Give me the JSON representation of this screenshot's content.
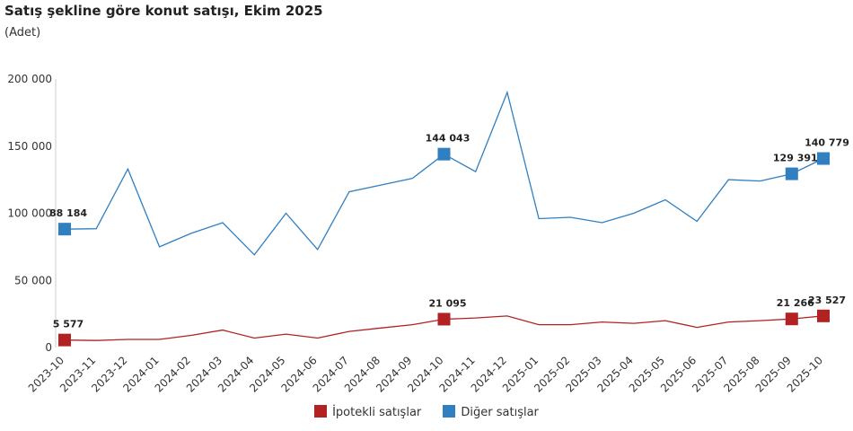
{
  "chart_data": {
    "type": "line",
    "title": "Satış şekline göre konut satışı, Ekim 2025",
    "subtitle": "(Adet)",
    "categories": [
      "2023-10",
      "2023-11",
      "2023-12",
      "2024-01",
      "2024-02",
      "2024-03",
      "2024-04",
      "2024-05",
      "2024-06",
      "2024-07",
      "2024-08",
      "2024-09",
      "2024-10",
      "2024-11",
      "2024-12",
      "2025-01",
      "2025-02",
      "2025-03",
      "2025-04",
      "2025-05",
      "2025-06",
      "2025-07",
      "2025-08",
      "2025-09",
      "2025-10"
    ],
    "series": [
      {
        "name": "İpotekli satışlar",
        "color": "#b22222",
        "values": [
          5577,
          5200,
          6000,
          6000,
          9000,
          13000,
          7000,
          10000,
          7000,
          12000,
          14500,
          17000,
          21095,
          22000,
          23500,
          17000,
          17000,
          19000,
          18000,
          20000,
          15000,
          19000,
          20000,
          21266,
          23527
        ]
      },
      {
        "name": "Diğer satışlar",
        "color": "#2f7fc1",
        "values": [
          88184,
          88500,
          133000,
          75000,
          85000,
          93000,
          69000,
          100000,
          73000,
          116000,
          121000,
          126000,
          144043,
          131000,
          190000,
          96000,
          97000,
          93000,
          100000,
          110000,
          94000,
          125000,
          124000,
          129391,
          140779
        ]
      }
    ],
    "data_labels": [
      {
        "series": 0,
        "index": 0,
        "text": "5 577"
      },
      {
        "series": 0,
        "index": 12,
        "text": "21 095"
      },
      {
        "series": 0,
        "index": 23,
        "text": "21 266"
      },
      {
        "series": 0,
        "index": 24,
        "text": "23 527"
      },
      {
        "series": 1,
        "index": 0,
        "text": "88 184"
      },
      {
        "series": 1,
        "index": 12,
        "text": "144 043"
      },
      {
        "series": 1,
        "index": 23,
        "text": "129 391"
      },
      {
        "series": 1,
        "index": 24,
        "text": "140 779"
      }
    ],
    "yticks": [
      0,
      50000,
      100000,
      150000,
      200000
    ],
    "ytick_labels": [
      "0",
      "50 000",
      "100 000",
      "150 000",
      "200 000"
    ],
    "ylim": [
      0,
      200000
    ],
    "grid": false,
    "legend": "bottom-center"
  }
}
